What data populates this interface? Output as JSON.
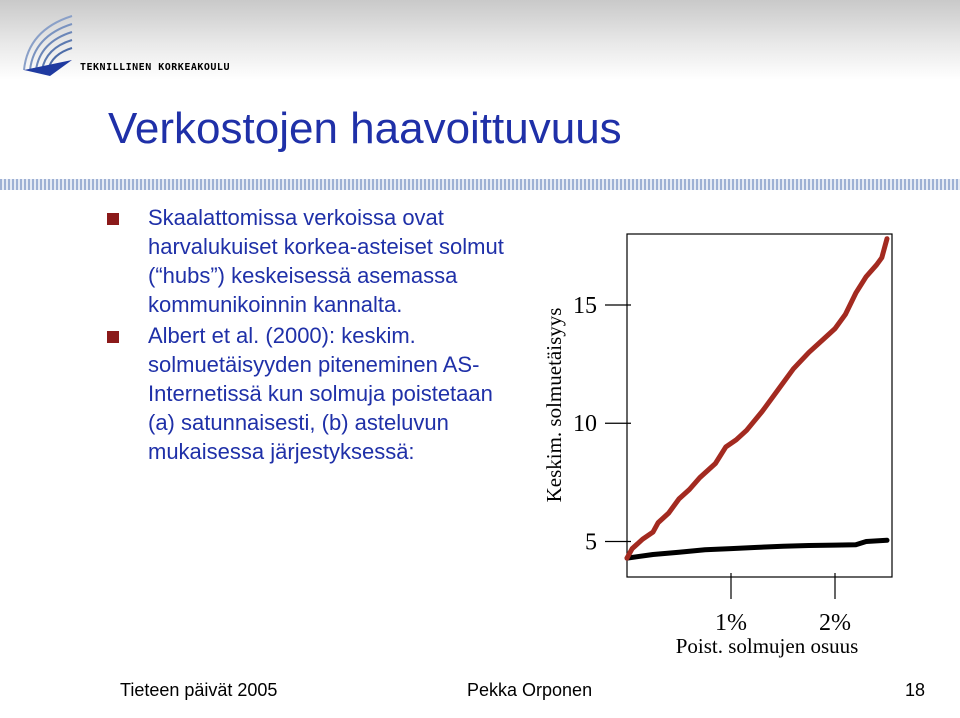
{
  "header": {
    "org_name": "TEKNILLINEN KORKEAKOULU"
  },
  "slide": {
    "title": "Verkostojen haavoittuvuus",
    "bullets": [
      "Skaalattomissa verkoissa ovat harvalukuiset korkea-asteiset solmut (“hubs”) keskeisessä asemassa kommunikoinnin kannalta.",
      "Albert et al. (2000): keskim. solmuetäisyyden piteneminen AS-Internetissä kun solmuja poistetaan (a) satunnaisesti, (b) asteluvun mukaisessa järjestyksessä:"
    ],
    "bullet_color": "#8b1a1a",
    "text_color": "#1f30a8"
  },
  "chart_data": {
    "type": "line",
    "xlabel": "Poist. solmujen osuus",
    "ylabel": "Keskim. solmuetäisyys",
    "xticks": [
      1,
      2
    ],
    "xtick_labels": [
      "1%",
      "2%"
    ],
    "yticks": [
      5,
      10,
      15
    ],
    "ytick_labels": [
      "5",
      "10",
      "15"
    ],
    "xlim": [
      0,
      2.5
    ],
    "ylim": [
      3.5,
      18
    ],
    "grid": false,
    "series": [
      {
        "color": "#000000",
        "x": [
          0,
          0.25,
          0.5,
          0.75,
          1.0,
          1.25,
          1.5,
          1.75,
          2.0,
          2.2,
          2.3,
          2.5
        ],
        "y": [
          4.3,
          4.45,
          4.55,
          4.65,
          4.7,
          4.75,
          4.8,
          4.83,
          4.85,
          4.86,
          5.0,
          5.05
        ]
      },
      {
        "color": "#a32a20",
        "x": [
          0,
          0.05,
          0.15,
          0.25,
          0.3,
          0.4,
          0.5,
          0.6,
          0.7,
          0.85,
          0.95,
          1.05,
          1.15,
          1.3,
          1.45,
          1.6,
          1.75,
          1.9,
          2.0,
          2.1,
          2.2,
          2.3,
          2.4,
          2.45,
          2.5
        ],
        "y": [
          4.3,
          4.7,
          5.1,
          5.4,
          5.8,
          6.2,
          6.8,
          7.2,
          7.7,
          8.3,
          9.0,
          9.3,
          9.7,
          10.5,
          11.4,
          12.3,
          13.0,
          13.6,
          14.0,
          14.6,
          15.5,
          16.2,
          16.7,
          17.0,
          17.8
        ]
      }
    ]
  },
  "footer": {
    "left": "Tieteen päivät 2005",
    "center": "Pekka Orponen",
    "right": "18"
  }
}
